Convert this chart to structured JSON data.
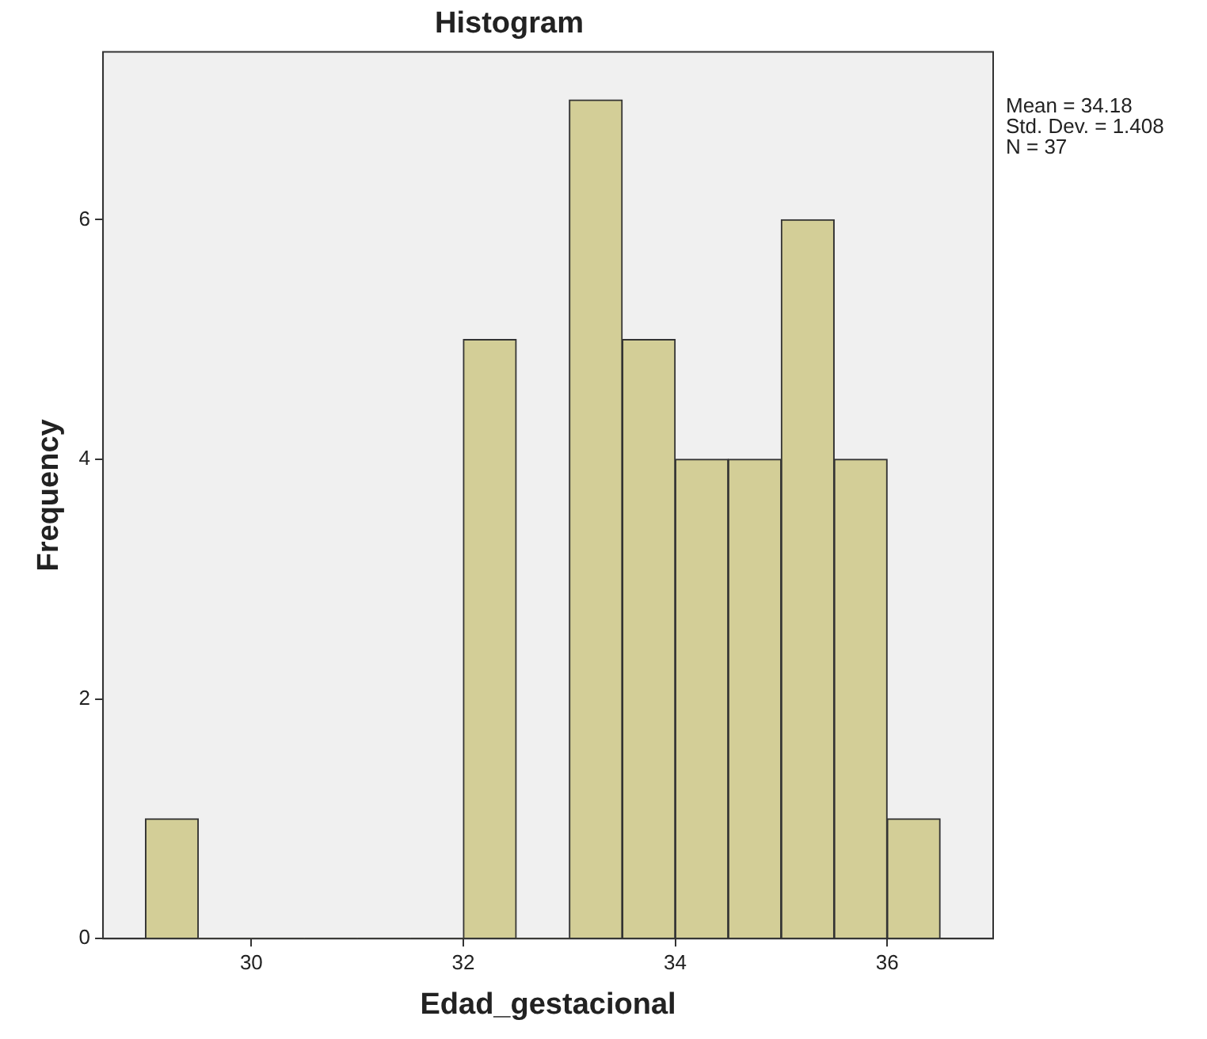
{
  "chart_data": {
    "type": "histogram",
    "title": "Histogram",
    "xlabel": "Edad_gestacional",
    "ylabel": "Frequency",
    "bins": [
      29,
      29.5,
      30,
      30.5,
      31,
      31.5,
      32,
      32.5,
      33,
      33.5,
      34,
      34.5,
      35,
      35.5,
      36,
      36.5
    ],
    "values": [
      1,
      0,
      0,
      0,
      0,
      0,
      5,
      0,
      7,
      5,
      4,
      4,
      6,
      4,
      1
    ],
    "color": "#d3ce97",
    "xlim": [
      28.6,
      37.0
    ],
    "xticks": [
      30,
      32,
      34,
      36
    ],
    "ylim": [
      0,
      7.4
    ],
    "yticks": [
      0,
      2,
      4,
      6
    ],
    "grid": false,
    "legend": false,
    "annotations": [
      "Mean = 34.18",
      "Std. Dev. = 1.408",
      "N = 37"
    ]
  }
}
